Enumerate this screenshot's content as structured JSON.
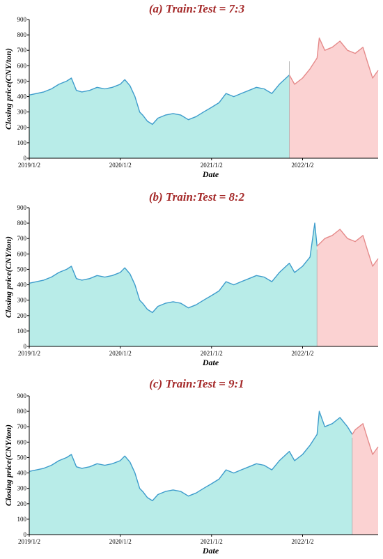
{
  "chart_data": [
    {
      "type": "area",
      "title": "(a) Train:Test = 7:3",
      "xlabel": "Date",
      "ylabel": "Closing price(CNY/ton)",
      "ylim": [
        0,
        900
      ],
      "yticks": [
        0,
        100,
        200,
        300,
        400,
        500,
        600,
        700,
        800,
        900
      ],
      "xticks": [
        "2019/1/2",
        "2020/1/2",
        "2021/1/2",
        "2022/1/2"
      ],
      "split": "2021/11/10",
      "series": [
        {
          "x": [
            "2019/1/2",
            "2019/2/1",
            "2019/3/1",
            "2019/4/1",
            "2019/5/1",
            "2019/6/1",
            "2019/6/20",
            "2019/7/10",
            "2019/8/1",
            "2019/9/1",
            "2019/10/1",
            "2019/11/1",
            "2019/12/1",
            "2020/1/2",
            "2020/1/20",
            "2020/2/10",
            "2020/3/1",
            "2020/3/20",
            "2020/4/1",
            "2020/4/20",
            "2020/5/10",
            "2020/6/1",
            "2020/7/1",
            "2020/8/1",
            "2020/9/1",
            "2020/10/1",
            "2020/11/1",
            "2020/12/1",
            "2021/1/2",
            "2021/2/1",
            "2021/3/1",
            "2021/4/1",
            "2021/5/1",
            "2021/6/1",
            "2021/7/1",
            "2021/8/1",
            "2021/9/1",
            "2021/10/1",
            "2021/11/10"
          ],
          "values": [
            410,
            420,
            430,
            450,
            480,
            500,
            520,
            440,
            430,
            440,
            460,
            450,
            460,
            480,
            510,
            470,
            400,
            300,
            280,
            240,
            220,
            260,
            280,
            290,
            280,
            250,
            270,
            300,
            330,
            360,
            420,
            400,
            420,
            440,
            460,
            450,
            420,
            480,
            540
          ]
        },
        {
          "x": [
            "2021/11/10",
            "2021/12/1",
            "2022/1/2",
            "2022/2/1",
            "2022/3/1",
            "2022/3/10",
            "2022/4/1",
            "2022/5/1",
            "2022/6/1",
            "2022/7/1",
            "2022/8/1",
            "2022/9/1",
            "2022/9/20",
            "2022/10/10",
            "2022/11/1"
          ],
          "values": [
            540,
            480,
            520,
            580,
            650,
            780,
            700,
            720,
            760,
            700,
            680,
            720,
            620,
            520,
            570
          ]
        }
      ]
    },
    {
      "type": "area",
      "title": "(b) Train:Test = 8:2",
      "xlabel": "Date",
      "ylabel": "Closing price(CNY/ton)",
      "ylim": [
        0,
        900
      ],
      "yticks": [
        0,
        100,
        200,
        300,
        400,
        500,
        600,
        700,
        800,
        900
      ],
      "xticks": [
        "2019/1/2",
        "2020/1/2",
        "2021/1/2",
        "2022/1/2"
      ],
      "split": "2022/3/1",
      "series": [
        {
          "x": [
            "2019/1/2",
            "2019/2/1",
            "2019/3/1",
            "2019/4/1",
            "2019/5/1",
            "2019/6/1",
            "2019/6/20",
            "2019/7/10",
            "2019/8/1",
            "2019/9/1",
            "2019/10/1",
            "2019/11/1",
            "2019/12/1",
            "2020/1/2",
            "2020/1/20",
            "2020/2/10",
            "2020/3/1",
            "2020/3/20",
            "2020/4/1",
            "2020/4/20",
            "2020/5/10",
            "2020/6/1",
            "2020/7/1",
            "2020/8/1",
            "2020/9/1",
            "2020/10/1",
            "2020/11/1",
            "2020/12/1",
            "2021/1/2",
            "2021/2/1",
            "2021/3/1",
            "2021/4/1",
            "2021/5/1",
            "2021/6/1",
            "2021/7/1",
            "2021/8/1",
            "2021/9/1",
            "2021/10/1",
            "2021/11/10",
            "2021/12/1",
            "2022/1/2",
            "2022/2/1",
            "2022/2/20",
            "2022/3/1"
          ],
          "values": [
            410,
            420,
            430,
            450,
            480,
            500,
            520,
            440,
            430,
            440,
            460,
            450,
            460,
            480,
            510,
            470,
            400,
            300,
            280,
            240,
            220,
            260,
            280,
            290,
            280,
            250,
            270,
            300,
            330,
            360,
            420,
            400,
            420,
            440,
            460,
            450,
            420,
            480,
            540,
            480,
            520,
            580,
            800,
            650
          ]
        },
        {
          "x": [
            "2022/3/1",
            "2022/4/1",
            "2022/5/1",
            "2022/6/1",
            "2022/7/1",
            "2022/8/1",
            "2022/9/1",
            "2022/9/20",
            "2022/10/10",
            "2022/11/1"
          ],
          "values": [
            650,
            700,
            720,
            760,
            700,
            680,
            720,
            620,
            520,
            570
          ]
        }
      ]
    },
    {
      "type": "area",
      "title": "(c) Train:Test = 9:1",
      "xlabel": "Date",
      "ylabel": "Closing price(CNY/ton)",
      "ylim": [
        0,
        900
      ],
      "yticks": [
        0,
        100,
        200,
        300,
        400,
        500,
        600,
        700,
        800,
        900
      ],
      "xticks": [
        "2019/1/2",
        "2020/1/2",
        "2021/1/2",
        "2022/1/2"
      ],
      "split": "2022/7/20",
      "series": [
        {
          "x": [
            "2019/1/2",
            "2019/2/1",
            "2019/3/1",
            "2019/4/1",
            "2019/5/1",
            "2019/6/1",
            "2019/6/20",
            "2019/7/10",
            "2019/8/1",
            "2019/9/1",
            "2019/10/1",
            "2019/11/1",
            "2019/12/1",
            "2020/1/2",
            "2020/1/20",
            "2020/2/10",
            "2020/3/1",
            "2020/3/20",
            "2020/4/1",
            "2020/4/20",
            "2020/5/10",
            "2020/6/1",
            "2020/7/1",
            "2020/8/1",
            "2020/9/1",
            "2020/10/1",
            "2020/11/1",
            "2020/12/1",
            "2021/1/2",
            "2021/2/1",
            "2021/3/1",
            "2021/4/1",
            "2021/5/1",
            "2021/6/1",
            "2021/7/1",
            "2021/8/1",
            "2021/9/1",
            "2021/10/1",
            "2021/11/10",
            "2021/12/1",
            "2022/1/2",
            "2022/2/1",
            "2022/3/1",
            "2022/3/10",
            "2022/4/1",
            "2022/5/1",
            "2022/6/1",
            "2022/7/1",
            "2022/7/20"
          ],
          "values": [
            410,
            420,
            430,
            450,
            480,
            500,
            520,
            440,
            430,
            440,
            460,
            450,
            460,
            480,
            510,
            470,
            400,
            300,
            280,
            240,
            220,
            260,
            280,
            290,
            280,
            250,
            270,
            300,
            330,
            360,
            420,
            400,
            420,
            440,
            460,
            450,
            420,
            480,
            540,
            480,
            520,
            580,
            650,
            800,
            700,
            720,
            760,
            700,
            650
          ]
        },
        {
          "x": [
            "2022/7/20",
            "2022/8/1",
            "2022/9/1",
            "2022/9/20",
            "2022/10/10",
            "2022/11/1"
          ],
          "values": [
            650,
            680,
            720,
            620,
            520,
            570
          ]
        }
      ]
    }
  ]
}
